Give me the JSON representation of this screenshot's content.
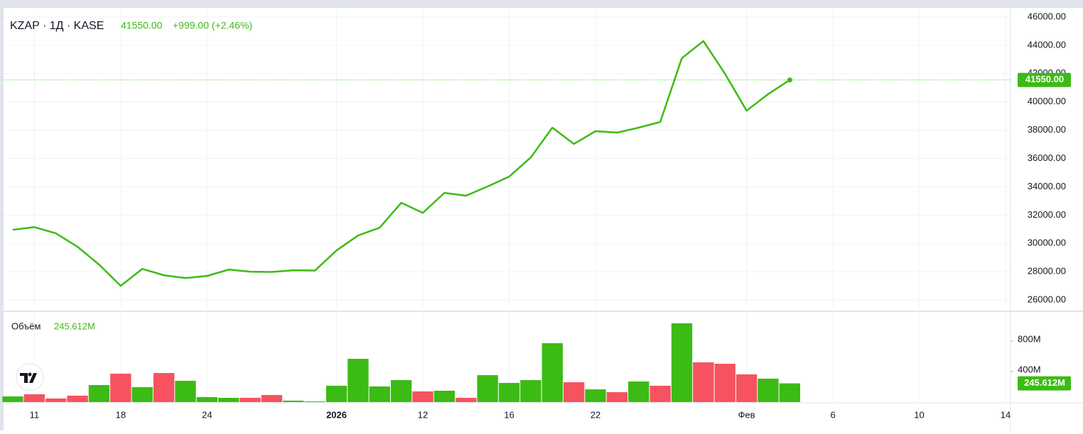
{
  "chart_data": [
    {
      "type": "line",
      "title": "KZAP · 1Д · KASE",
      "change": "+999.00 (+2.46%)",
      "categories": [
        null,
        "11",
        null,
        null,
        null,
        "18",
        null,
        null,
        null,
        "24",
        null,
        null,
        null,
        null,
        null,
        "2026",
        null,
        null,
        null,
        "12",
        null,
        null,
        null,
        "16",
        null,
        null,
        null,
        "22",
        null,
        null,
        null,
        null,
        null,
        null,
        "Фев",
        null,
        null,
        null,
        "6",
        null,
        null,
        null,
        "10",
        null,
        null,
        null,
        "14"
      ],
      "series": [
        {
          "name": "KZAP",
          "color": "#3cbb14",
          "values": [
            30960,
            31150,
            30710,
            29760,
            28500,
            27000,
            28200,
            27750,
            27550,
            27700,
            28150,
            28000,
            27980,
            28100,
            28080,
            29500,
            30560,
            31110,
            32870,
            32160,
            33570,
            33370,
            34020,
            34720,
            36070,
            38180,
            37030,
            37930,
            37830,
            38180,
            38580,
            43090,
            44300,
            41990,
            39380,
            40551,
            41550,
            null,
            null,
            null,
            null,
            null,
            null,
            null,
            null,
            null,
            null
          ],
          "value_labels": [
            null,
            null,
            null,
            null,
            null,
            null,
            null,
            null,
            null,
            null,
            null,
            null,
            null,
            null,
            null,
            null,
            null,
            null,
            null,
            null,
            null,
            null,
            null,
            null,
            null,
            null,
            null,
            null,
            null,
            null,
            null,
            null,
            null,
            null,
            null,
            null,
            "41550.00",
            null,
            null,
            null,
            null,
            null,
            null,
            null,
            null,
            null,
            null
          ]
        }
      ],
      "ylim": [
        25250,
        46450
      ],
      "yticks": [
        {
          "value": 26000,
          "label": "26000.00"
        },
        {
          "value": 28000,
          "label": "28000.00"
        },
        {
          "value": 30000,
          "label": "30000.00"
        },
        {
          "value": 32000,
          "label": "32000.00"
        },
        {
          "value": 34000,
          "label": "34000.00"
        },
        {
          "value": 36000,
          "label": "36000.00"
        },
        {
          "value": 38000,
          "label": "38000.00"
        },
        {
          "value": 40000,
          "label": "40000.00"
        },
        {
          "value": 42000,
          "label": "42000.00"
        },
        {
          "value": 44000,
          "label": "44000.00"
        },
        {
          "value": 46000,
          "label": "46000.00"
        }
      ],
      "grid": true
    },
    {
      "type": "bar",
      "title": "Объём",
      "series": [
        {
          "name": "Объём",
          "values": [
            74,
            102,
            47,
            84,
            223,
            372,
            195,
            381,
            279,
            65,
            56,
            56,
            93,
            19,
            9,
            214,
            567,
            205,
            288,
            140,
            149,
            56,
            353,
            251,
            288,
            772,
            260,
            167,
            130,
            270,
            214,
            1032,
            521,
            502,
            363,
            307,
            245.612,
            null,
            null,
            null,
            null,
            null,
            null,
            null,
            null,
            null,
            null
          ],
          "colors": [
            "#3cbb14",
            "#f7525f",
            "#f7525f",
            "#f7525f",
            "#3cbb14",
            "#f7525f",
            "#3cbb14",
            "#f7525f",
            "#3cbb14",
            "#3cbb14",
            "#3cbb14",
            "#f7525f",
            "#f7525f",
            "#3cbb14",
            "#3cbb14",
            "#3cbb14",
            "#3cbb14",
            "#3cbb14",
            "#3cbb14",
            "#f7525f",
            "#3cbb14",
            "#f7525f",
            "#3cbb14",
            "#3cbb14",
            "#3cbb14",
            "#3cbb14",
            "#f7525f",
            "#3cbb14",
            "#f7525f",
            "#3cbb14",
            "#f7525f",
            "#3cbb14",
            "#f7525f",
            "#f7525f",
            "#f7525f",
            "#3cbb14",
            "#3cbb14",
            null,
            null,
            null,
            null,
            null,
            null,
            null,
            null,
            null,
            null
          ],
          "value_labels": [
            null,
            null,
            null,
            null,
            null,
            null,
            null,
            null,
            null,
            null,
            null,
            null,
            null,
            null,
            null,
            null,
            null,
            null,
            null,
            null,
            null,
            null,
            null,
            null,
            null,
            null,
            null,
            null,
            null,
            null,
            null,
            null,
            null,
            null,
            null,
            null,
            "245.612M",
            null,
            null,
            null,
            null,
            null,
            null,
            null,
            null,
            null,
            null
          ]
        }
      ],
      "ylim": [
        0,
        1180
      ],
      "yticks": [
        {
          "value": 400,
          "label": "400M"
        },
        {
          "value": 800,
          "label": "800M"
        }
      ]
    }
  ]
}
